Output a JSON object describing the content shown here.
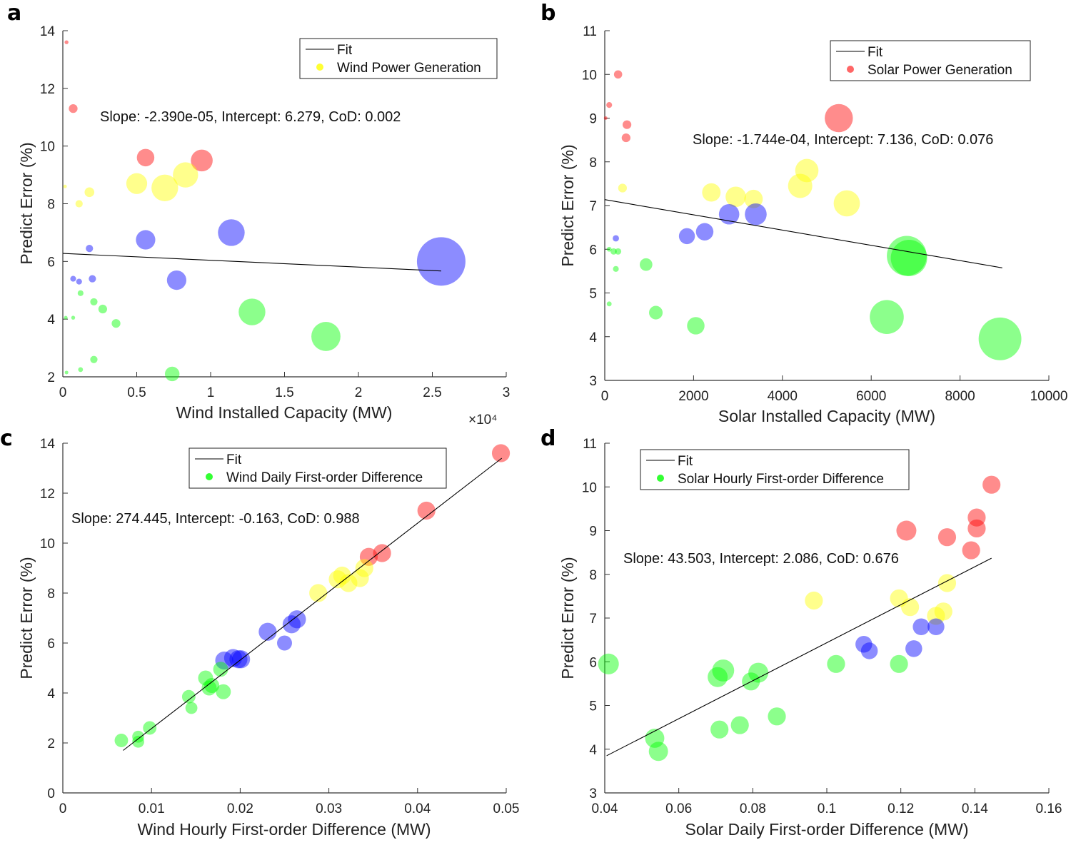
{
  "chart_data": [
    {
      "panel": "a",
      "type": "scatter",
      "xlabel": "Wind Installed Capacity (MW)",
      "ylabel": "Predict Error (%)",
      "xlim": [
        0,
        30000
      ],
      "ylim": [
        2,
        14
      ],
      "xticks": [
        0,
        5000,
        10000,
        15000,
        20000,
        25000,
        30000
      ],
      "xtick_labels": [
        "0",
        "0.5",
        "1",
        "1.5",
        "2",
        "2.5",
        "3"
      ],
      "yticks": [
        2,
        4,
        6,
        8,
        10,
        12,
        14
      ],
      "ytick_labels": [
        "2",
        "4",
        "6",
        "8",
        "10",
        "12",
        "14"
      ],
      "x_multiplier": "×10⁴",
      "legend": {
        "fit": "Fit",
        "series": "Wind Power Generation",
        "series_color": "#ffff33",
        "position": "top-right"
      },
      "annotation": "Slope: -2.390e-05,  Intercept: 6.279,  CoD: 0.002",
      "fit": {
        "x0": 0,
        "y0": 6.279,
        "x1": 25600,
        "y1": 5.67
      },
      "points": [
        {
          "x": 250,
          "y": 13.6,
          "s": 0.08,
          "color": "#ff0000"
        },
        {
          "x": 700,
          "y": 11.3,
          "s": 0.18,
          "color": "#ff0000"
        },
        {
          "x": 5600,
          "y": 9.6,
          "s": 0.36,
          "color": "#ff0000"
        },
        {
          "x": 9400,
          "y": 9.5,
          "s": 0.45,
          "color": "#ff0000"
        },
        {
          "x": 150,
          "y": 8.6,
          "s": 0.04,
          "color": "#ffff00"
        },
        {
          "x": 1100,
          "y": 8.0,
          "s": 0.15,
          "color": "#ffff00"
        },
        {
          "x": 1800,
          "y": 8.4,
          "s": 0.2,
          "color": "#ffff00"
        },
        {
          "x": 5000,
          "y": 8.7,
          "s": 0.43,
          "color": "#ffff00"
        },
        {
          "x": 6900,
          "y": 8.55,
          "s": 0.55,
          "color": "#ffff00"
        },
        {
          "x": 8300,
          "y": 9.0,
          "s": 0.52,
          "color": "#ffff00"
        },
        {
          "x": 1800,
          "y": 6.45,
          "s": 0.15,
          "color": "#0000ff"
        },
        {
          "x": 5600,
          "y": 6.75,
          "s": 0.4,
          "color": "#0000ff"
        },
        {
          "x": 11400,
          "y": 7.0,
          "s": 0.55,
          "color": "#0000ff"
        },
        {
          "x": 25600,
          "y": 6.0,
          "s": 1.0,
          "color": "#0000ff"
        },
        {
          "x": 700,
          "y": 5.4,
          "s": 0.12,
          "color": "#0000ff"
        },
        {
          "x": 1100,
          "y": 5.3,
          "s": 0.12,
          "color": "#0000ff"
        },
        {
          "x": 2000,
          "y": 5.4,
          "s": 0.15,
          "color": "#0000ff"
        },
        {
          "x": 7700,
          "y": 5.35,
          "s": 0.4,
          "color": "#0000ff"
        },
        {
          "x": 1200,
          "y": 4.9,
          "s": 0.12,
          "color": "#00ff00"
        },
        {
          "x": 2100,
          "y": 4.6,
          "s": 0.15,
          "color": "#00ff00"
        },
        {
          "x": 2700,
          "y": 4.35,
          "s": 0.18,
          "color": "#00ff00"
        },
        {
          "x": 3600,
          "y": 3.85,
          "s": 0.18,
          "color": "#00ff00"
        },
        {
          "x": 200,
          "y": 4.05,
          "s": 0.05,
          "color": "#00ff00"
        },
        {
          "x": 700,
          "y": 4.05,
          "s": 0.08,
          "color": "#00ff00"
        },
        {
          "x": 12800,
          "y": 4.25,
          "s": 0.55,
          "color": "#00ff00"
        },
        {
          "x": 17800,
          "y": 3.4,
          "s": 0.6,
          "color": "#00ff00"
        },
        {
          "x": 2100,
          "y": 2.6,
          "s": 0.15,
          "color": "#00ff00"
        },
        {
          "x": 1200,
          "y": 2.25,
          "s": 0.1,
          "color": "#00ff00"
        },
        {
          "x": 250,
          "y": 2.15,
          "s": 0.04,
          "color": "#00ff00"
        },
        {
          "x": 7400,
          "y": 2.1,
          "s": 0.3,
          "color": "#00ff00"
        }
      ]
    },
    {
      "panel": "b",
      "type": "scatter",
      "xlabel": "Solar Installed Capacity (MW)",
      "ylabel": "Predict Error (%)",
      "xlim": [
        0,
        10000
      ],
      "ylim": [
        3,
        11
      ],
      "xticks": [
        0,
        2000,
        4000,
        6000,
        8000,
        10000
      ],
      "xtick_labels": [
        "0",
        "2000",
        "4000",
        "6000",
        "8000",
        "10000"
      ],
      "yticks": [
        3,
        4,
        5,
        6,
        7,
        8,
        9,
        10,
        11
      ],
      "ytick_labels": [
        "3",
        "4",
        "5",
        "6",
        "7",
        "8",
        "9",
        "10",
        "11"
      ],
      "legend": {
        "fit": "Fit",
        "series": "Solar Power Generation",
        "series_color": "#ff6666",
        "position": "top-right"
      },
      "annotation": "Slope: -1.744e-04,  Intercept: 7.136,  CoD: 0.076",
      "fit": {
        "x0": 0,
        "y0": 7.136,
        "x1": 8950,
        "y1": 5.575
      },
      "points": [
        {
          "x": 300,
          "y": 10.0,
          "s": 0.17,
          "color": "#ff0000"
        },
        {
          "x": 100,
          "y": 9.3,
          "s": 0.12,
          "color": "#ff0000"
        },
        {
          "x": 20,
          "y": 9.0,
          "s": 0.05,
          "color": "#ff0000"
        },
        {
          "x": 500,
          "y": 8.85,
          "s": 0.18,
          "color": "#ff0000"
        },
        {
          "x": 480,
          "y": 8.55,
          "s": 0.18,
          "color": "#ff0000"
        },
        {
          "x": 5270,
          "y": 9.0,
          "s": 0.58,
          "color": "#ff0000"
        },
        {
          "x": 400,
          "y": 7.4,
          "s": 0.18,
          "color": "#ffff00"
        },
        {
          "x": 2400,
          "y": 7.3,
          "s": 0.38,
          "color": "#ffff00"
        },
        {
          "x": 2950,
          "y": 7.2,
          "s": 0.42,
          "color": "#ffff00"
        },
        {
          "x": 3350,
          "y": 7.15,
          "s": 0.38,
          "color": "#ffff00"
        },
        {
          "x": 4400,
          "y": 7.45,
          "s": 0.5,
          "color": "#ffff00"
        },
        {
          "x": 4550,
          "y": 7.8,
          "s": 0.48,
          "color": "#ffff00"
        },
        {
          "x": 5450,
          "y": 7.05,
          "s": 0.54,
          "color": "#ffff00"
        },
        {
          "x": 250,
          "y": 6.25,
          "s": 0.13,
          "color": "#0000ff"
        },
        {
          "x": 1850,
          "y": 6.3,
          "s": 0.33,
          "color": "#0000ff"
        },
        {
          "x": 2250,
          "y": 6.4,
          "s": 0.36,
          "color": "#0000ff"
        },
        {
          "x": 2800,
          "y": 6.8,
          "s": 0.42,
          "color": "#0000ff"
        },
        {
          "x": 3400,
          "y": 6.8,
          "s": 0.45,
          "color": "#0000ff"
        },
        {
          "x": 100,
          "y": 6.0,
          "s": 0.1,
          "color": "#00ff00"
        },
        {
          "x": 200,
          "y": 5.95,
          "s": 0.13,
          "color": "#00ff00"
        },
        {
          "x": 300,
          "y": 5.95,
          "s": 0.13,
          "color": "#00ff00"
        },
        {
          "x": 250,
          "y": 5.55,
          "s": 0.12,
          "color": "#00ff00"
        },
        {
          "x": 930,
          "y": 5.65,
          "s": 0.26,
          "color": "#00ff00"
        },
        {
          "x": 100,
          "y": 4.75,
          "s": 0.1,
          "color": "#00ff00"
        },
        {
          "x": 1150,
          "y": 4.55,
          "s": 0.28,
          "color": "#00ff00"
        },
        {
          "x": 2050,
          "y": 4.25,
          "s": 0.36,
          "color": "#00ff00"
        },
        {
          "x": 6350,
          "y": 4.45,
          "s": 0.7,
          "color": "#00ff00"
        },
        {
          "x": 6800,
          "y": 5.85,
          "s": 0.82,
          "color": "#00ff00"
        },
        {
          "x": 6850,
          "y": 5.8,
          "s": 0.75,
          "color": "#00ff00"
        },
        {
          "x": 8900,
          "y": 3.95,
          "s": 0.88,
          "color": "#00ff00"
        }
      ]
    },
    {
      "panel": "c",
      "type": "scatter",
      "xlabel": "Wind Hourly First-order Difference (MW)",
      "ylabel": "Predict Error (%)",
      "xlim": [
        0,
        0.05
      ],
      "ylim": [
        0,
        14
      ],
      "xticks": [
        0,
        0.01,
        0.02,
        0.03,
        0.04,
        0.05
      ],
      "xtick_labels": [
        "0",
        "0.01",
        "0.02",
        "0.03",
        "0.04",
        "0.05"
      ],
      "yticks": [
        0,
        2,
        4,
        6,
        8,
        10,
        12,
        14
      ],
      "ytick_labels": [
        "0",
        "2",
        "4",
        "6",
        "8",
        "10",
        "12",
        "14"
      ],
      "legend": {
        "fit": "Fit",
        "series": "Wind Daily First-order Difference",
        "series_color": "#33ff33",
        "position": "top-left"
      },
      "annotation": "Slope: 274.445,  Intercept: -0.163,  CoD: 0.988",
      "fit": {
        "x0": 0.0068,
        "y0": 1.7,
        "x1": 0.0495,
        "y1": 13.4
      },
      "points": [
        {
          "x": 0.0494,
          "y": 13.6,
          "s": 0.6,
          "color": "#ff0000"
        },
        {
          "x": 0.041,
          "y": 11.3,
          "s": 0.6,
          "color": "#ff0000"
        },
        {
          "x": 0.036,
          "y": 9.6,
          "s": 0.6,
          "color": "#ff0000"
        },
        {
          "x": 0.0345,
          "y": 9.45,
          "s": 0.6,
          "color": "#ff0000"
        },
        {
          "x": 0.0288,
          "y": 8.0,
          "s": 0.6,
          "color": "#ffff00"
        },
        {
          "x": 0.031,
          "y": 8.55,
          "s": 0.6,
          "color": "#ffff00"
        },
        {
          "x": 0.0315,
          "y": 8.7,
          "s": 0.6,
          "color": "#ffff00"
        },
        {
          "x": 0.0322,
          "y": 8.4,
          "s": 0.6,
          "color": "#ffff00"
        },
        {
          "x": 0.0335,
          "y": 8.6,
          "s": 0.6,
          "color": "#ffff00"
        },
        {
          "x": 0.034,
          "y": 9.0,
          "s": 0.6,
          "color": "#ffff00"
        },
        {
          "x": 0.0264,
          "y": 6.95,
          "s": 0.6,
          "color": "#0000ff"
        },
        {
          "x": 0.0258,
          "y": 6.75,
          "s": 0.6,
          "color": "#0000ff"
        },
        {
          "x": 0.0231,
          "y": 6.45,
          "s": 0.6,
          "color": "#0000ff"
        },
        {
          "x": 0.025,
          "y": 6.0,
          "s": 0.5,
          "color": "#0000ff"
        },
        {
          "x": 0.0182,
          "y": 5.3,
          "s": 0.6,
          "color": "#0000ff"
        },
        {
          "x": 0.0192,
          "y": 5.4,
          "s": 0.6,
          "color": "#0000ff"
        },
        {
          "x": 0.0198,
          "y": 5.35,
          "s": 0.6,
          "color": "#0000ff"
        },
        {
          "x": 0.0201,
          "y": 5.35,
          "s": 0.6,
          "color": "#0000ff"
        },
        {
          "x": 0.0178,
          "y": 4.95,
          "s": 0.5,
          "color": "#00ff00"
        },
        {
          "x": 0.0161,
          "y": 4.6,
          "s": 0.5,
          "color": "#00ff00"
        },
        {
          "x": 0.0168,
          "y": 4.3,
          "s": 0.5,
          "color": "#00ff00"
        },
        {
          "x": 0.0165,
          "y": 4.2,
          "s": 0.5,
          "color": "#00ff00"
        },
        {
          "x": 0.0181,
          "y": 4.05,
          "s": 0.5,
          "color": "#00ff00"
        },
        {
          "x": 0.0142,
          "y": 3.85,
          "s": 0.45,
          "color": "#00ff00"
        },
        {
          "x": 0.0145,
          "y": 3.4,
          "s": 0.4,
          "color": "#00ff00"
        },
        {
          "x": 0.0098,
          "y": 2.6,
          "s": 0.45,
          "color": "#00ff00"
        },
        {
          "x": 0.0085,
          "y": 2.25,
          "s": 0.4,
          "color": "#00ff00"
        },
        {
          "x": 0.0066,
          "y": 2.1,
          "s": 0.45,
          "color": "#00ff00"
        },
        {
          "x": 0.0085,
          "y": 2.05,
          "s": 0.4,
          "color": "#00ff00"
        }
      ]
    },
    {
      "panel": "d",
      "type": "scatter",
      "xlabel": "Solar Daily First-order Difference (MW)",
      "ylabel": "Predict Error (%)",
      "xlim": [
        0.04,
        0.16
      ],
      "ylim": [
        3,
        11
      ],
      "xticks": [
        0.04,
        0.06,
        0.08,
        0.1,
        0.12,
        0.14,
        0.16
      ],
      "xtick_labels": [
        "0.04",
        "0.06",
        "0.08",
        "0.1",
        "0.12",
        "0.14",
        "0.16"
      ],
      "yticks": [
        3,
        4,
        5,
        6,
        7,
        8,
        9,
        10,
        11
      ],
      "ytick_labels": [
        "3",
        "4",
        "5",
        "6",
        "7",
        "8",
        "9",
        "10",
        "11"
      ],
      "legend": {
        "fit": "Fit",
        "series": "Solar Hourly First-order Difference",
        "series_color": "#33ff33",
        "position": "top-left"
      },
      "annotation": "Slope: 43.503,  Intercept: 2.086,  CoD: 0.676",
      "fit": {
        "x0": 0.0405,
        "y0": 3.85,
        "x1": 0.1445,
        "y1": 8.37
      },
      "points": [
        {
          "x": 0.1445,
          "y": 10.05,
          "s": 0.45,
          "color": "#ff0000"
        },
        {
          "x": 0.1405,
          "y": 9.3,
          "s": 0.45,
          "color": "#ff0000"
        },
        {
          "x": 0.1405,
          "y": 9.05,
          "s": 0.45,
          "color": "#ff0000"
        },
        {
          "x": 0.1215,
          "y": 9.0,
          "s": 0.5,
          "color": "#ff0000"
        },
        {
          "x": 0.1325,
          "y": 8.85,
          "s": 0.45,
          "color": "#ff0000"
        },
        {
          "x": 0.139,
          "y": 8.55,
          "s": 0.45,
          "color": "#ff0000"
        },
        {
          "x": 0.0965,
          "y": 7.4,
          "s": 0.45,
          "color": "#ffff00"
        },
        {
          "x": 0.1195,
          "y": 7.45,
          "s": 0.45,
          "color": "#ffff00"
        },
        {
          "x": 0.1225,
          "y": 7.25,
          "s": 0.45,
          "color": "#ffff00"
        },
        {
          "x": 0.1295,
          "y": 7.05,
          "s": 0.45,
          "color": "#ffff00"
        },
        {
          "x": 0.1315,
          "y": 7.15,
          "s": 0.45,
          "color": "#ffff00"
        },
        {
          "x": 0.1325,
          "y": 7.8,
          "s": 0.45,
          "color": "#ffff00"
        },
        {
          "x": 0.1255,
          "y": 6.8,
          "s": 0.42,
          "color": "#0000ff"
        },
        {
          "x": 0.1295,
          "y": 6.8,
          "s": 0.42,
          "color": "#0000ff"
        },
        {
          "x": 0.11,
          "y": 6.4,
          "s": 0.42,
          "color": "#0000ff"
        },
        {
          "x": 0.1115,
          "y": 6.25,
          "s": 0.42,
          "color": "#0000ff"
        },
        {
          "x": 0.1235,
          "y": 6.3,
          "s": 0.42,
          "color": "#0000ff"
        },
        {
          "x": 0.041,
          "y": 5.95,
          "s": 0.52,
          "color": "#00ff00"
        },
        {
          "x": 0.0705,
          "y": 5.65,
          "s": 0.5,
          "color": "#00ff00"
        },
        {
          "x": 0.072,
          "y": 5.8,
          "s": 0.55,
          "color": "#00ff00"
        },
        {
          "x": 0.0795,
          "y": 5.55,
          "s": 0.45,
          "color": "#00ff00"
        },
        {
          "x": 0.0815,
          "y": 5.75,
          "s": 0.5,
          "color": "#00ff00"
        },
        {
          "x": 0.1025,
          "y": 5.95,
          "s": 0.45,
          "color": "#00ff00"
        },
        {
          "x": 0.1195,
          "y": 5.95,
          "s": 0.45,
          "color": "#00ff00"
        },
        {
          "x": 0.0535,
          "y": 4.25,
          "s": 0.48,
          "color": "#00ff00"
        },
        {
          "x": 0.0545,
          "y": 3.95,
          "s": 0.48,
          "color": "#00ff00"
        },
        {
          "x": 0.071,
          "y": 4.45,
          "s": 0.45,
          "color": "#00ff00"
        },
        {
          "x": 0.0765,
          "y": 4.55,
          "s": 0.45,
          "color": "#00ff00"
        },
        {
          "x": 0.0865,
          "y": 4.75,
          "s": 0.45,
          "color": "#00ff00"
        }
      ]
    }
  ]
}
